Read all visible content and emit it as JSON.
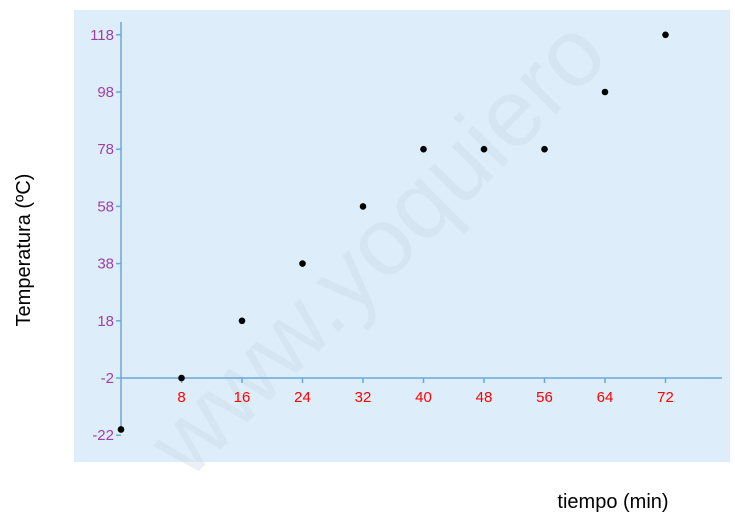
{
  "chart_data": {
    "type": "scatter",
    "title": "",
    "xlabel": "tiempo (min)",
    "ylabel": "Temperatura (ºC)",
    "x_ticks": [
      8,
      16,
      24,
      32,
      40,
      48,
      56,
      64,
      72
    ],
    "y_ticks": [
      -22,
      -2,
      18,
      38,
      58,
      78,
      98,
      118
    ],
    "xlim": [
      0,
      80
    ],
    "ylim": [
      -22,
      118
    ],
    "grid": false,
    "legend": "none",
    "points": [
      {
        "x": 0,
        "y": -20
      },
      {
        "x": 8,
        "y": -2
      },
      {
        "x": 16,
        "y": 18
      },
      {
        "x": 24,
        "y": 38
      },
      {
        "x": 32,
        "y": 58
      },
      {
        "x": 40,
        "y": 78
      },
      {
        "x": 48,
        "y": 78
      },
      {
        "x": 56,
        "y": 78
      },
      {
        "x": 64,
        "y": 98
      },
      {
        "x": 72,
        "y": 118
      }
    ]
  },
  "watermark": "www.yoquierо",
  "colors": {
    "plot_background": "#ddeefa",
    "axis": "#6aa8d8",
    "x_tick_label": "#ff0000",
    "y_tick_label": "#a040a0",
    "point": "#000000"
  }
}
